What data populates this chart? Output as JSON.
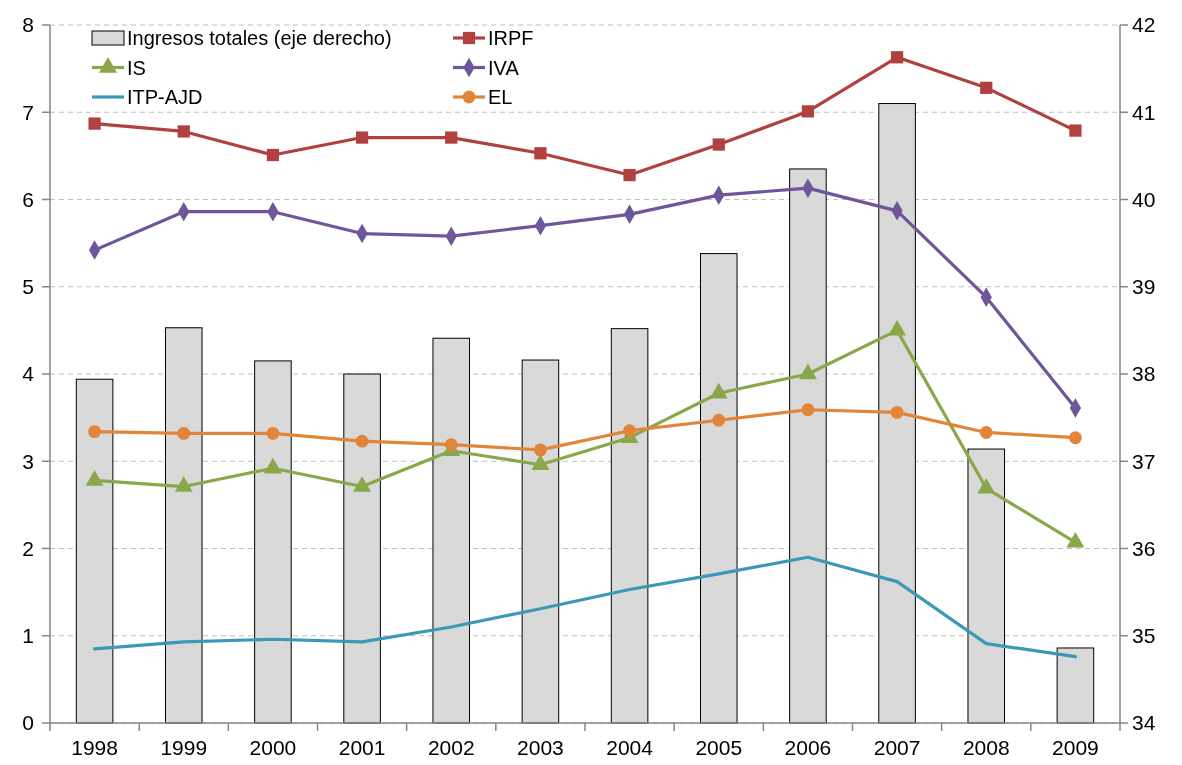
{
  "chart_data": {
    "type": "line",
    "categories": [
      "1998",
      "1999",
      "2000",
      "2001",
      "2002",
      "2003",
      "2004",
      "2005",
      "2006",
      "2007",
      "2008",
      "2009"
    ],
    "series": [
      {
        "name": "Ingresos totales (eje derecho)",
        "type": "bar",
        "axis": "y2",
        "color": "#d9d9d9",
        "values": [
          37.94,
          38.53,
          38.15,
          38.0,
          38.41,
          38.16,
          38.52,
          39.38,
          40.35,
          41.1,
          37.14,
          34.86
        ]
      },
      {
        "name": "IRPF",
        "color": "#b0413e",
        "marker": "square",
        "values": [
          6.87,
          6.78,
          6.51,
          6.71,
          6.71,
          6.53,
          6.28,
          6.63,
          7.01,
          7.63,
          7.28,
          6.79
        ]
      },
      {
        "name": "IS",
        "color": "#8aa84b",
        "marker": "triangle",
        "values": [
          2.78,
          2.71,
          2.92,
          2.71,
          3.12,
          2.96,
          3.27,
          3.78,
          4.0,
          4.5,
          2.69,
          2.07
        ]
      },
      {
        "name": "IVA",
        "color": "#6f559a",
        "marker": "diamond",
        "values": [
          5.42,
          5.86,
          5.86,
          5.61,
          5.58,
          5.7,
          5.83,
          6.05,
          6.13,
          5.87,
          4.88,
          3.61
        ]
      },
      {
        "name": "ITP-AJD",
        "color": "#3a9ab5",
        "marker": "none",
        "values": [
          0.85,
          0.93,
          0.96,
          0.93,
          1.1,
          1.31,
          1.53,
          1.71,
          1.9,
          1.62,
          0.91,
          0.76
        ]
      },
      {
        "name": "EL",
        "color": "#e0853a",
        "marker": "circle",
        "values": [
          3.34,
          3.32,
          3.32,
          3.23,
          3.19,
          3.13,
          3.35,
          3.47,
          3.59,
          3.56,
          3.33,
          3.27
        ]
      }
    ],
    "ylim": [
      0,
      8
    ],
    "yticks": [
      0,
      1,
      2,
      3,
      4,
      5,
      6,
      7,
      8
    ],
    "y2lim": [
      34,
      42
    ],
    "y2ticks": [
      34,
      35,
      36,
      37,
      38,
      39,
      40,
      41,
      42
    ],
    "grid": "y",
    "legend": "top"
  }
}
